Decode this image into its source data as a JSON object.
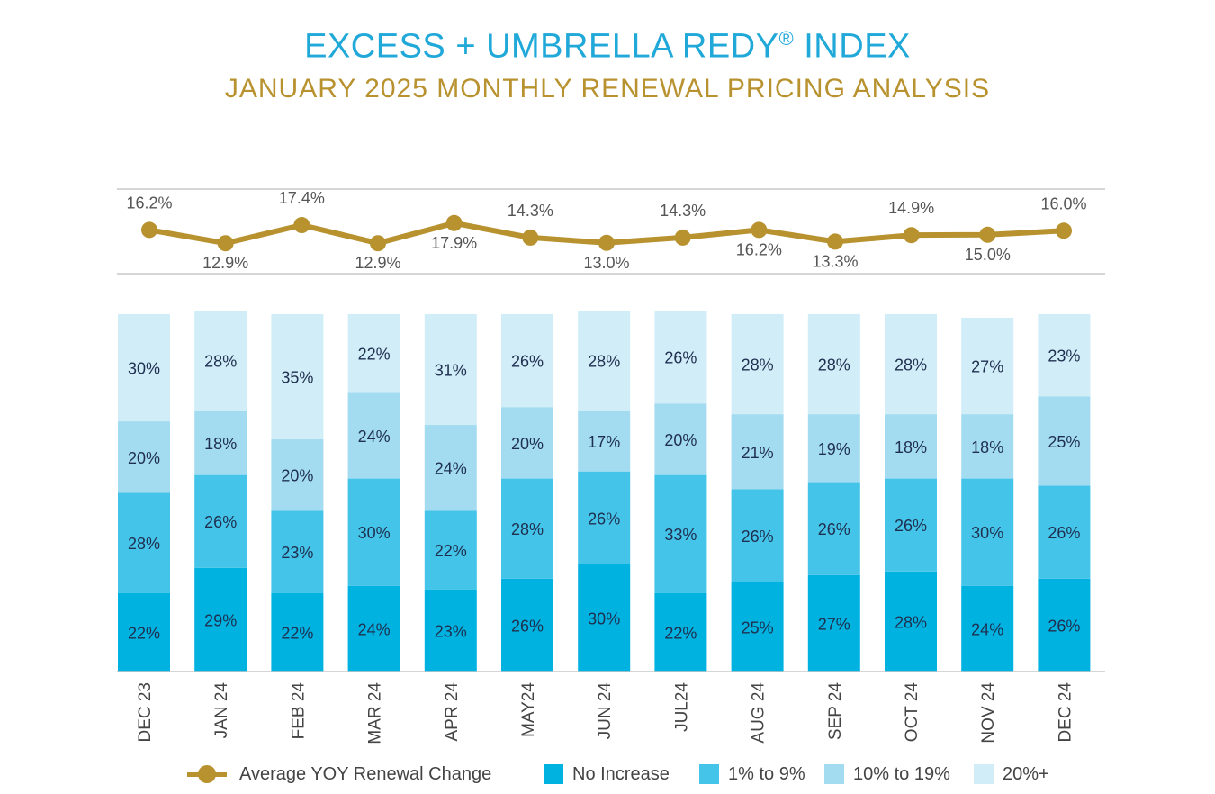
{
  "header": {
    "title_main": "EXCESS + UMBRELLA REDY",
    "title_reg": "®",
    "title_end": " INDEX",
    "subtitle": "JANUARY 2025 MONTHLY RENEWAL PRICING ANALYSIS"
  },
  "colors": {
    "no_increase": "#00b2e0",
    "one_to_nine": "#44c4e8",
    "ten_to_nineteen": "#a3dcf1",
    "twenty_plus": "#d1edf8",
    "line": "#b8922f"
  },
  "chart_data": {
    "type": "bar",
    "stacked": true,
    "categories": [
      "DEC 23",
      "JAN 24",
      "FEB 24",
      "MAR 24",
      "APR 24",
      "MAY24",
      "JUN 24",
      "JUL24",
      "AUG 24",
      "SEP 24",
      "OCT 24",
      "NOV 24",
      "DEC 24"
    ],
    "series": [
      {
        "name": "No Increase",
        "values": [
          22,
          29,
          22,
          24,
          23,
          26,
          30,
          22,
          25,
          27,
          28,
          24,
          26
        ],
        "labels": [
          "22%",
          "29%",
          "22%",
          "24%",
          "23%",
          "26%",
          "30%",
          "22%",
          "25%",
          "27%",
          "28%",
          "24%",
          "26%"
        ]
      },
      {
        "name": "1% to 9%",
        "values": [
          28,
          26,
          23,
          30,
          22,
          28,
          26,
          33,
          26,
          26,
          26,
          30,
          26
        ],
        "labels": [
          "28%",
          "26%",
          "23%",
          "30%",
          "22%",
          "28%",
          "26%",
          "33%",
          "26%",
          "26%",
          "26%",
          "30%",
          "26%"
        ]
      },
      {
        "name": "10% to 19%",
        "values": [
          20,
          18,
          20,
          24,
          24,
          20,
          17,
          20,
          21,
          19,
          18,
          18,
          25
        ],
        "labels": [
          "20%",
          "18%",
          "20%",
          "24%",
          "24%",
          "20%",
          "17%",
          "20%",
          "21%",
          "19%",
          "18%",
          "18%",
          "25%"
        ]
      },
      {
        "name": "20%+",
        "values": [
          30,
          28,
          35,
          22,
          31,
          26,
          28,
          26,
          28,
          28,
          28,
          27,
          23
        ],
        "labels": [
          "30%",
          "28%",
          "35%",
          "22%",
          "31%",
          "26%",
          "28%",
          "26%",
          "28%",
          "28%",
          "28%",
          "27%",
          "23%"
        ]
      }
    ],
    "line_series": {
      "name": "Average YOY Renewal Change",
      "values": [
        16.2,
        12.9,
        17.4,
        12.9,
        17.9,
        14.3,
        13.0,
        14.3,
        16.2,
        13.3,
        14.9,
        15.0,
        16.0
      ],
      "labels": [
        "16.2%",
        "12.9%",
        "17.4%",
        "12.9%",
        "17.9%",
        "14.3%",
        "13.0%",
        "14.3%",
        "16.2%",
        "13.3%",
        "14.9%",
        "15.0%",
        "16.0%"
      ],
      "label_positions": [
        "above",
        "below",
        "above",
        "below",
        "below",
        "above",
        "below",
        "above",
        "below",
        "below",
        "above",
        "below",
        "above"
      ]
    },
    "legend_placement": "bottom"
  }
}
